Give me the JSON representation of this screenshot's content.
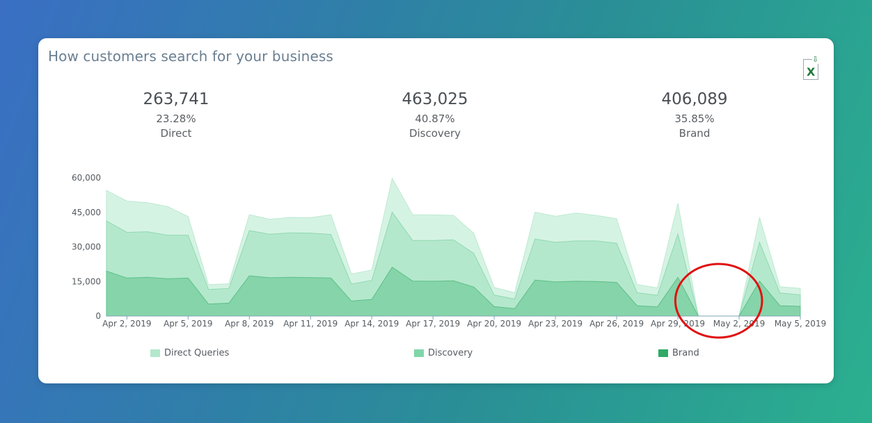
{
  "card": {
    "title": "How customers search for your business"
  },
  "export": {
    "icon": "excel-export-icon",
    "label": "X"
  },
  "stats": [
    {
      "value": "263,741",
      "pct": "23.28%",
      "label": "Direct"
    },
    {
      "value": "463,025",
      "pct": "40.87%",
      "label": "Discovery"
    },
    {
      "value": "406,089",
      "pct": "35.85%",
      "label": "Brand"
    }
  ],
  "legend": [
    {
      "label": "Direct Queries",
      "color": "#b3e8cb"
    },
    {
      "label": "Discovery",
      "color": "#7fd6a8"
    },
    {
      "label": "Brand",
      "color": "#2faa66"
    }
  ],
  "annotation": {
    "shape": "ellipse",
    "color": "#e01010",
    "around": [
      "Apr 30, 2019",
      "May 1, 2019",
      "May 2, 2019"
    ]
  },
  "chart_data": {
    "type": "area",
    "stacked": true,
    "x": [
      "Apr 1, 2019",
      "Apr 2, 2019",
      "Apr 3, 2019",
      "Apr 4, 2019",
      "Apr 5, 2019",
      "Apr 6, 2019",
      "Apr 7, 2019",
      "Apr 8, 2019",
      "Apr 9, 2019",
      "Apr 10, 2019",
      "Apr 11, 2019",
      "Apr 12, 2019",
      "Apr 13, 2019",
      "Apr 14, 2019",
      "Apr 15, 2019",
      "Apr 16, 2019",
      "Apr 17, 2019",
      "Apr 18, 2019",
      "Apr 19, 2019",
      "Apr 20, 2019",
      "Apr 21, 2019",
      "Apr 22, 2019",
      "Apr 23, 2019",
      "Apr 24, 2019",
      "Apr 25, 2019",
      "Apr 26, 2019",
      "Apr 27, 2019",
      "Apr 28, 2019",
      "Apr 29, 2019",
      "Apr 30, 2019",
      "May 1, 2019",
      "May 2, 2019",
      "May 3, 2019",
      "May 4, 2019",
      "May 5, 2019"
    ],
    "x_ticks": [
      "Apr 2, 2019",
      "Apr 5, 2019",
      "Apr 8, 2019",
      "Apr 11, 2019",
      "Apr 14, 2019",
      "Apr 17, 2019",
      "Apr 20, 2019",
      "Apr 23, 2019",
      "Apr 26, 2019",
      "Apr 29, 2019",
      "May 2, 2019",
      "May 5, 2019"
    ],
    "y_ticks": [
      "0",
      "15,000",
      "30,000",
      "45,000",
      "60,000"
    ],
    "ylim": [
      0,
      60000
    ],
    "grid": false,
    "legend_position": "bottom",
    "series": [
      {
        "name": "Brand",
        "color": "#86d4a9",
        "values": [
          19500,
          16500,
          16800,
          16200,
          16500,
          5200,
          5600,
          17500,
          16600,
          16800,
          16700,
          16500,
          6500,
          7200,
          21200,
          15200,
          15100,
          15300,
          12600,
          4100,
          3200,
          15600,
          14800,
          15100,
          15000,
          14600,
          4500,
          4000,
          16800,
          0,
          0,
          0,
          15200,
          4500,
          4200
        ]
      },
      {
        "name": "Discovery",
        "color": "#b4e8cc",
        "values": [
          21800,
          19800,
          19800,
          18900,
          18600,
          6300,
          6400,
          19600,
          18900,
          19300,
          19300,
          18900,
          7400,
          8300,
          23900,
          17600,
          17700,
          17800,
          14600,
          5000,
          4200,
          17800,
          17200,
          17500,
          17600,
          17000,
          5600,
          5000,
          18800,
          0,
          0,
          0,
          16800,
          5500,
          5000
        ]
      },
      {
        "name": "Direct Queries",
        "color": "#d5f3e3",
        "values": [
          13200,
          13600,
          12600,
          12400,
          8100,
          2100,
          2000,
          6900,
          6500,
          6700,
          6700,
          8600,
          4300,
          4500,
          14700,
          11200,
          11100,
          10600,
          8700,
          3300,
          2700,
          11700,
          11300,
          12100,
          11100,
          10600,
          3600,
          3200,
          13300,
          0,
          0,
          0,
          10800,
          2700,
          2800
        ]
      }
    ]
  }
}
